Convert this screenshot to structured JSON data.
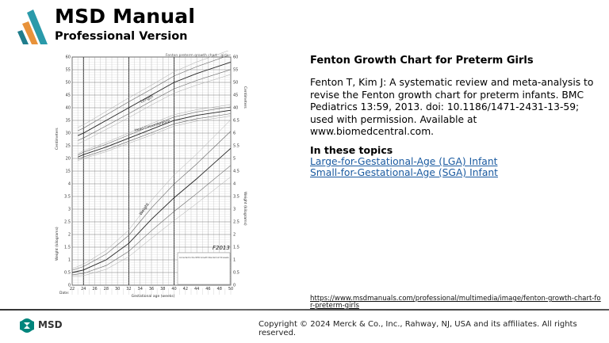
{
  "header": {
    "brand_title": "MSD Manual",
    "brand_subtitle": "Professional Version",
    "logo_colors": [
      "#1f7d8c",
      "#e8923a",
      "#2a9aaa"
    ]
  },
  "figure": {
    "chart_title": "Fenton preterm growth chart - girls",
    "left_axis_label_top": "Centimeters",
    "left_axis_label_bottom": "Weight (kilograms)",
    "right_axis_label_top": "Centimeters",
    "right_axis_label_bottom": "Weight (kilograms)",
    "x_axis_label": "Gestational age (weeks)",
    "date_label": "Date:",
    "curve_labels": {
      "length": "Length",
      "head": "Head Circumference",
      "weight": "Weight"
    },
    "left_ticks": [
      "60",
      "55",
      "50",
      "45",
      "40",
      "35",
      "30",
      "25",
      "20",
      "15",
      "4",
      "3.5",
      "3",
      "2.5",
      "2",
      "1.5",
      "1",
      "0.5",
      "0"
    ],
    "right_ticks": [
      "60",
      "55",
      "50",
      "45",
      "40",
      "6.5",
      "6",
      "5.5",
      "5",
      "4.5",
      "4",
      "3.5",
      "3",
      "2.5",
      "2",
      "1.5",
      "1",
      "0.5",
      "0"
    ],
    "x_ticks": [
      "22",
      "24",
      "26",
      "28",
      "30",
      "32",
      "34",
      "36",
      "38",
      "40",
      "42",
      "44",
      "46",
      "48",
      "50"
    ],
    "legend_mark": "F2013",
    "legend_note": "Corrected to the WHO Growth Standard at 50 weeks"
  },
  "main": {
    "title": "Fenton Growth Chart for Preterm Girls",
    "citation": " Fenton T, Kim J: A systematic review and meta-analysis to revise the Fenton growth chart for preterm infants. BMC Pediatrics 13:59, 2013. doi: 10.1186/1471-2431-13-59; used with permission. Available at www.biomedcentral.com.",
    "topics_heading": "In these topics",
    "topics": [
      "Large-for-Gestational-Age (LGA) Infant",
      "Small-for-Gestational-Age (SGA) Infant"
    ],
    "url": "https://www.msdmanuals.com/professional/multimedia/image/fenton-growth-chart-for-preterm-girls"
  },
  "footer": {
    "brand": "MSD",
    "copyright": "Copyright © 2024 Merck & Co., Inc., Rahway, NJ, USA and its affiliates. All rights reserved.",
    "brand_color": "#00857c"
  }
}
